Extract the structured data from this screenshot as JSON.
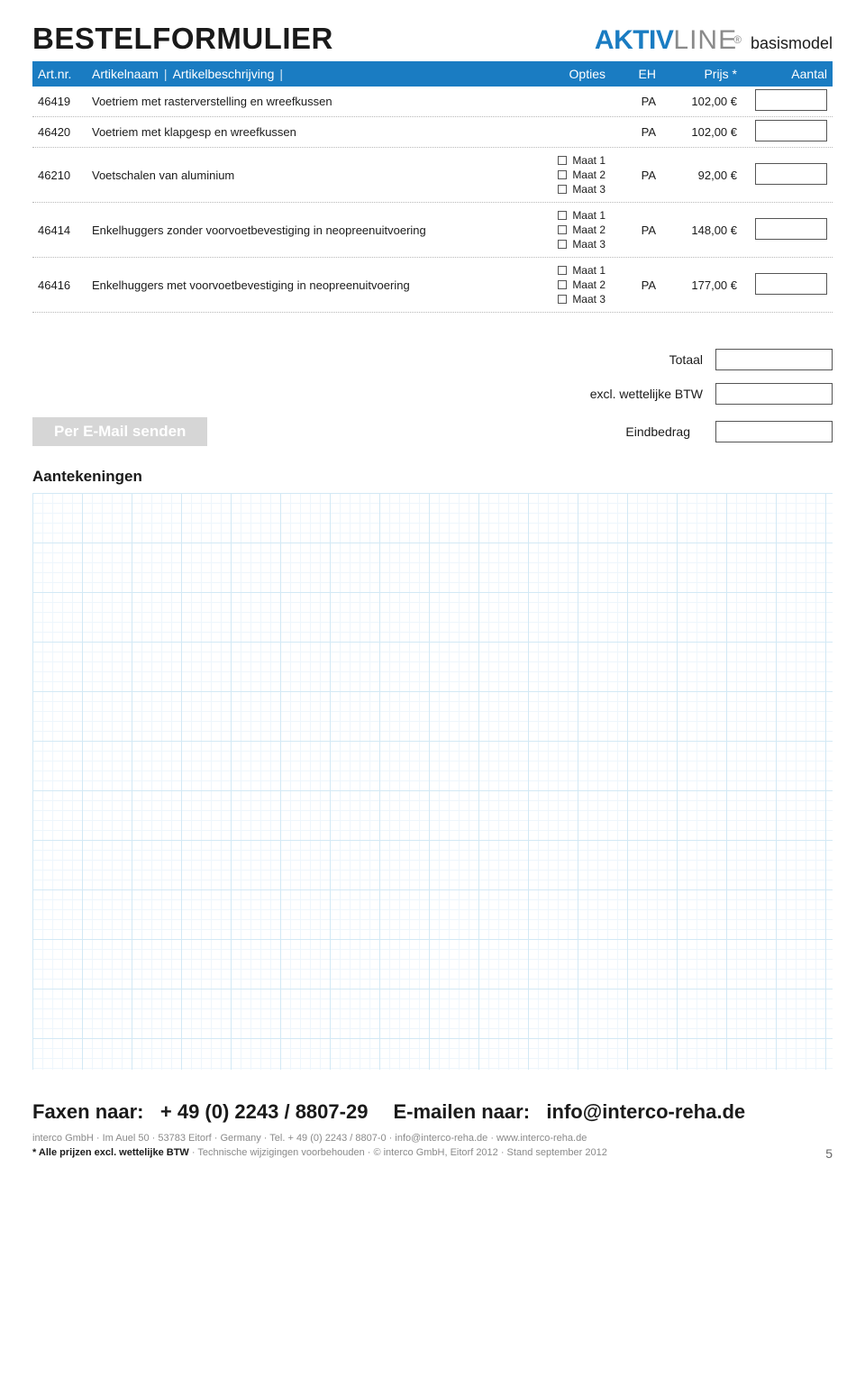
{
  "header": {
    "title": "BESTELFORMULIER",
    "brand_bold": "AKTIV",
    "brand_light": "LINE",
    "brand_reg": "®",
    "brand_sub": "basismodel"
  },
  "table": {
    "header": {
      "artnr": "Art.nr.",
      "artname": "Artikelnaam",
      "artdesc": "Artikelbeschrijving",
      "options": "Opties",
      "eh": "EH",
      "price": "Prijs *",
      "qty": "Aantal"
    },
    "rows": [
      {
        "art": "46419",
        "desc": "Voetriem met rasterverstelling en wreefkussen",
        "options": [],
        "eh": "PA",
        "price": "102,00"
      },
      {
        "art": "46420",
        "desc": "Voetriem met klapgesp en wreefkussen",
        "options": [],
        "eh": "PA",
        "price": "102,00"
      },
      {
        "art": "46210",
        "desc": "Voetschalen van aluminium",
        "options": [
          "Maat 1",
          "Maat 2",
          "Maat 3"
        ],
        "eh": "PA",
        "price": "92,00"
      },
      {
        "art": "46414",
        "desc": "Enkelhuggers zonder voorvoetbevestiging in neopreenuitvoering",
        "options": [
          "Maat 1",
          "Maat 2",
          "Maat 3"
        ],
        "eh": "PA",
        "price": "148,00"
      },
      {
        "art": "46416",
        "desc": "Enkelhuggers met voorvoetbevestiging in neopreenuitvoering",
        "options": [
          "Maat 1",
          "Maat 2",
          "Maat 3"
        ],
        "eh": "PA",
        "price": "177,00"
      }
    ]
  },
  "totals": {
    "total": "Totaal",
    "vat": "excl. wettelijke BTW",
    "final": "Eindbedrag",
    "email_button": "Per E-Mail senden"
  },
  "notes": {
    "title": "Aantekeningen"
  },
  "footer": {
    "fax_label": "Faxen naar:",
    "fax_number": "+ 49 (0) 2243 / 8807-29",
    "mail_label": "E-mailen naar:",
    "mail_addr": "info@interco-reha.de",
    "small1": "interco GmbH  ·  Im Auel 50  ·  53783 Eitorf  ·  Germany  ·  Tel. + 49 (0) 2243 / 8807-0  ·  info@interco-reha.de  ·  www.interco-reha.de",
    "small2_strong": "* Alle prijzen excl. wettelijke BTW",
    "small2_rest": "  ·  Technische wijzigingen voorbehouden  ·  © interco GmbH, Eitorf 2012  ·  Stand september 2012",
    "page": "5"
  },
  "style": {
    "accent": "#1a7cc2",
    "grid_major": "#d3e9f5",
    "grid_minor": "#eef6fc",
    "button_bg": "#d6d6d6",
    "text": "#1a1a1a",
    "muted": "#8a8a8a"
  }
}
